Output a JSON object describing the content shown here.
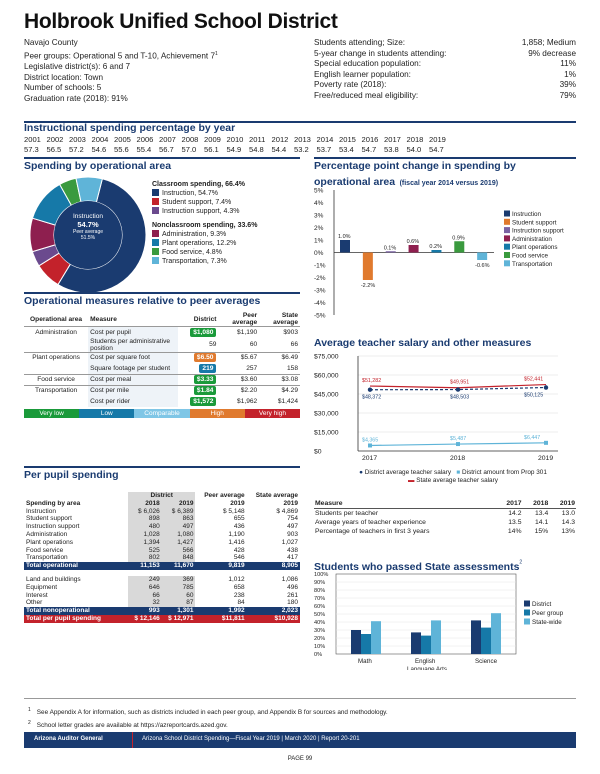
{
  "header": {
    "title": "Holbrook Unified School District",
    "county": "Navajo County",
    "peer_groups": "Peer groups: Operational 5 and T-10, Achievement 7",
    "peer_groups_sup": "1",
    "legislative": "Legislative district(s):  6 and 7",
    "location": "District location:  Town",
    "schools": "Number of schools:  5",
    "graduation": "Graduation rate (2018):  91%",
    "right": [
      {
        "label": "Students attending; Size:",
        "value": "1,858; Medium"
      },
      {
        "label": "5-year change in students attending:",
        "value": "9% decrease"
      },
      {
        "label": "Special education population:",
        "value": "11%"
      },
      {
        "label": "English learner population:",
        "value": "1%"
      },
      {
        "label": "Poverty rate (2018):",
        "value": "39%"
      },
      {
        "label": "Free/reduced meal eligibility:",
        "value": "79%"
      }
    ]
  },
  "instr_pct": {
    "heading": "Instructional spending percentage by year",
    "years": [
      "2001",
      "2002",
      "2003",
      "2004",
      "2005",
      "2006",
      "2007",
      "2008",
      "2009",
      "2010",
      "2011",
      "2012",
      "2013",
      "2014",
      "2015",
      "2016",
      "2017",
      "2018",
      "2019"
    ],
    "values": [
      "57.3",
      "56.5",
      "57.2",
      "54.6",
      "55.6",
      "55.4",
      "56.7",
      "57.0",
      "56.1",
      "54.9",
      "54.8",
      "54.4",
      "53.2",
      "53.7",
      "53.4",
      "54.7",
      "53.8",
      "54.0",
      "54.7"
    ]
  },
  "spending_area": {
    "heading": "Spending by operational area",
    "center_label": "Instruction",
    "center_value": "54.7%",
    "center_peer_label": "Peer average",
    "center_peer_value": "51.5%",
    "classroom_title": "Classroom spending, 66.4%",
    "classroom_items": [
      {
        "label": "Instruction, 54.7%",
        "color": "#1a3b70"
      },
      {
        "label": "Student support, 7.4%",
        "color": "#c3222b"
      },
      {
        "label": "Instruction support, 4.3%",
        "color": "#6b4a8e"
      }
    ],
    "nonclass_title": "Nonclassroom spending, 33.6%",
    "nonclass_items": [
      {
        "label": "Administration, 9.3%",
        "color": "#8e1f4f"
      },
      {
        "label": "Plant operations, 12.2%",
        "color": "#1679a8"
      },
      {
        "label": "Food service, 4.8%",
        "color": "#3a9a3e"
      },
      {
        "label": "Transportation, 7.3%",
        "color": "#5fb4d8"
      }
    ]
  },
  "ppt_change": {
    "heading": "Percentage point change in spending by",
    "heading2": "operational area",
    "heading_note": "(fiscal year 2014 versus 2019)",
    "yticks": [
      "5%",
      "4%",
      "3%",
      "2%",
      "1%",
      "0%",
      "-1%",
      "-2%",
      "-3%",
      "-4%",
      "-5%"
    ],
    "bars": [
      {
        "name": "Instruction",
        "value": 1.0,
        "label": "1.0%",
        "color": "#1a3b70"
      },
      {
        "name": "Student support",
        "value": -2.2,
        "label": "-2.2%",
        "color": "#e07a2e"
      },
      {
        "name": "Instruction support",
        "value": 0.1,
        "label": "0.1%",
        "color": "#7a62a3"
      },
      {
        "name": "Administration",
        "value": 0.6,
        "label": "0.6%",
        "color": "#8e1f4f"
      },
      {
        "name": "Plant operations",
        "value": 0.2,
        "label": "0.2%",
        "color": "#1679a8"
      },
      {
        "name": "Food service",
        "value": 0.9,
        "label": "0.9%",
        "color": "#3a9a3e"
      },
      {
        "name": "Transportation",
        "value": -0.6,
        "label": "-0.6%",
        "color": "#5fb4d8"
      }
    ],
    "ylim": [
      -5,
      5
    ]
  },
  "op_measures": {
    "heading": "Operational measures relative to peer averages",
    "col_area": "Operational area",
    "col_measure": "Measure",
    "col_district": "District",
    "col_peer": "Peer average",
    "col_state": "State average",
    "rows": [
      {
        "area": "Administration",
        "measure": "Cost per pupil",
        "district": "$1,080",
        "peer": "$1,190",
        "state": "$903",
        "pill": "#1a9a3a"
      },
      {
        "area": "",
        "measure": "Students per administrative position",
        "district": "59",
        "peer": "60",
        "state": "66",
        "pill": ""
      },
      {
        "area": "Plant operations",
        "measure": "Cost per square foot",
        "district": "$6.50",
        "peer": "$5.67",
        "state": "$6.49",
        "pill": "#e07a2e"
      },
      {
        "area": "",
        "measure": "Square footage per student",
        "district": "219",
        "peer": "257",
        "state": "158",
        "pill": "#1679a8"
      },
      {
        "area": "Food service",
        "measure": "Cost per meal",
        "district": "$3.33",
        "peer": "$3.60",
        "state": "$3.08",
        "pill": "#1a9a3a"
      },
      {
        "area": "Transportation",
        "measure": "Cost per mile",
        "district": "$1.84",
        "peer": "$2.20",
        "state": "$4.29",
        "pill": "#1a9a3a"
      },
      {
        "area": "",
        "measure": "Cost per rider",
        "district": "$1,572",
        "peer": "$1,962",
        "state": "$1,424",
        "pill": "#1a9a3a"
      }
    ],
    "scale": [
      {
        "label": "Very low",
        "color": "#1a9a3a"
      },
      {
        "label": "Low",
        "color": "#1679a8"
      },
      {
        "label": "Comparable",
        "color": "#7fc6e6"
      },
      {
        "label": "High",
        "color": "#e07a2e"
      },
      {
        "label": "Very high",
        "color": "#c3222b"
      }
    ]
  },
  "salary": {
    "heading": "Average teacher salary and other measures",
    "yticks": [
      "$75,000",
      "$60,000",
      "$45,000",
      "$30,000",
      "$15,000",
      "$0"
    ],
    "years": [
      "2017",
      "2018",
      "2019"
    ],
    "district": [
      48372,
      48503,
      50125
    ],
    "district_labels": [
      "$48,372",
      "$48,503",
      "$50,125"
    ],
    "state": [
      51282,
      49951,
      52441
    ],
    "state_labels": [
      "$51,282",
      "$49,951",
      "$52,441"
    ],
    "prop": [
      4365,
      5487,
      6447
    ],
    "prop_labels": [
      "$4,365",
      "$5,487",
      "$6,447"
    ],
    "legend_district": "District average teacher salary",
    "legend_prop": "District amount from Prop 301",
    "legend_state": "State average teacher salary",
    "ylim": [
      0,
      75000
    ]
  },
  "measures_table": {
    "col_measure": "Measure",
    "years": [
      "2017",
      "2018",
      "2019"
    ],
    "rows": [
      {
        "m": "Students per teacher",
        "v": [
          "14.2",
          "13.4",
          "13.0"
        ]
      },
      {
        "m": "Average years of teacher experience",
        "v": [
          "13.5",
          "14.1",
          "14.3"
        ]
      },
      {
        "m": "Percentage of teachers in first 3 years",
        "v": [
          "14%",
          "15%",
          "13%"
        ]
      }
    ]
  },
  "assessments": {
    "heading": "Students who passed State assessments",
    "heading_sup": "2",
    "yticks": [
      "100%",
      "90%",
      "80%",
      "70%",
      "60%",
      "50%",
      "40%",
      "30%",
      "20%",
      "10%",
      "0%"
    ],
    "categories": [
      "Math",
      "English Language Arts",
      "Science"
    ],
    "cat1": "Math",
    "cat2a": "English",
    "cat2b": "Language Arts",
    "cat3": "Science",
    "series": [
      {
        "name": "District",
        "values": [
          30,
          27,
          42
        ],
        "color": "#1a3b70"
      },
      {
        "name": "Peer group",
        "values": [
          25,
          23,
          33
        ],
        "color": "#1679a8"
      },
      {
        "name": "State-wide",
        "values": [
          41,
          42,
          51
        ],
        "color": "#5fb4d8"
      }
    ]
  },
  "pps": {
    "heading": "Per pupil spending",
    "col_area": "Spending by area",
    "col_district": "District",
    "col_peer": "Peer average",
    "col_state": "State average",
    "y2018": "2018",
    "y2019": "2019",
    "rows": [
      {
        "a": "Instruction",
        "d18": "$  6,026",
        "d19": "$  6,389",
        "p": "$  5,148",
        "s": "$  4,869"
      },
      {
        "a": "Student support",
        "d18": "898",
        "d19": "863",
        "p": "655",
        "s": "754"
      },
      {
        "a": "Instruction support",
        "d18": "480",
        "d19": "497",
        "p": "436",
        "s": "497"
      },
      {
        "a": "Administration",
        "d18": "1,028",
        "d19": "1,080",
        "p": "1,190",
        "s": "903"
      },
      {
        "a": "Plant operations",
        "d18": "1,394",
        "d19": "1,427",
        "p": "1,416",
        "s": "1,027"
      },
      {
        "a": "Food service",
        "d18": "525",
        "d19": "566",
        "p": "428",
        "s": "438"
      },
      {
        "a": "Transportation",
        "d18": "802",
        "d19": "848",
        "p": "546",
        "s": "417"
      }
    ],
    "total_op": {
      "a": "Total operational",
      "d18": "11,153",
      "d19": "11,670",
      "p": "9,819",
      "s": "8,905"
    },
    "rows2": [
      {
        "a": "Land and buildings",
        "d18": "249",
        "d19": "369",
        "p": "1,012",
        "s": "1,086"
      },
      {
        "a": "Equipment",
        "d18": "646",
        "d19": "785",
        "p": "658",
        "s": "496"
      },
      {
        "a": "Interest",
        "d18": "66",
        "d19": "60",
        "p": "238",
        "s": "261"
      },
      {
        "a": "Other",
        "d18": "32",
        "d19": "87",
        "p": "84",
        "s": "180"
      }
    ],
    "total_nonop": {
      "a": "Total nonoperational",
      "d18": "993",
      "d19": "1,301",
      "p": "1,992",
      "s": "2,023"
    },
    "total": {
      "a": "Total per pupil spending",
      "d18": "$ 12,146",
      "d19": "$ 12,971",
      "p": "$11,811",
      "s": "$10,928"
    }
  },
  "footnotes": [
    {
      "n": "1",
      "t": "See Appendix A for information, such as districts included in each peer group, and Appendix B for sources and methodology."
    },
    {
      "n": "2",
      "t": "School letter grades are available at https://azreportcards.azed.gov."
    }
  ],
  "footer": {
    "left": "Arizona Auditor General",
    "right": "Arizona School District Spending—Fiscal Year 2019  |  March 2020  |  Report 20-201",
    "page": "PAGE 99"
  }
}
